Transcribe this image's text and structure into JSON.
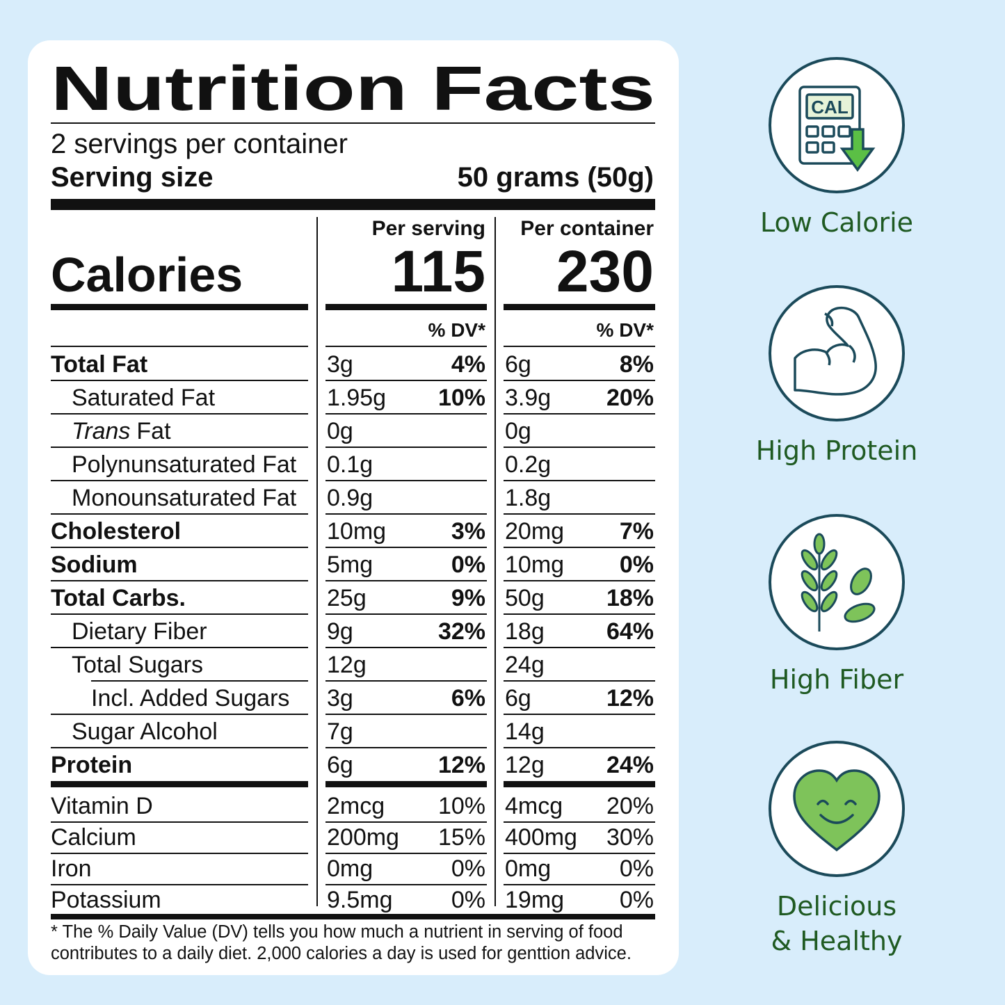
{
  "label": {
    "title": "Nutrition Facts",
    "servings": "2 servings per container",
    "serving_size_label": "Serving size",
    "serving_size_value": "50 grams (50g)",
    "per_serving": "Per serving",
    "per_container": "Per container",
    "calories_label": "Calories",
    "calories_serving": 115,
    "calories_container": 230,
    "dv_serving": "% DV*",
    "dv_container": "% DV*",
    "rows": [
      {
        "nutrient": "Total Fat",
        "serving_amount": "3g",
        "serving_dv": "4%",
        "container_amount": "6g",
        "container_dv": "8%"
      },
      {
        "nutrient": "Saturated Fat",
        "serving_amount": "1.95g",
        "serving_dv": "10%",
        "container_amount": "3.9g",
        "container_dv": "20%"
      },
      {
        "nutrient_prefix": "Trans",
        "nutrient": "Fat",
        "serving_amount": "0g",
        "container_amount": "0g"
      },
      {
        "nutrient": "Polynunsaturated Fat",
        "serving_amount": "0.1g",
        "container_amount": "0.2g"
      },
      {
        "nutrient": "Monounsaturated Fat",
        "serving_amount": "0.9g",
        "container_amount": "1.8g"
      },
      {
        "nutrient": "Cholesterol",
        "serving_amount": "10mg",
        "serving_dv": "3%",
        "container_amount": "20mg",
        "container_dv": "7%"
      },
      {
        "nutrient": "Sodium",
        "serving_amount": "5mg",
        "serving_dv": "0%",
        "container_amount": "10mg",
        "container_dv": "0%"
      },
      {
        "nutrient": "Total Carbs.",
        "serving_amount": "25g",
        "serving_dv": "9%",
        "container_amount": "50g",
        "container_dv": "18%"
      },
      {
        "nutrient": "Dietary Fiber",
        "serving_amount": "9g",
        "serving_dv": "32%",
        "container_amount": "18g",
        "container_dv": "64%"
      },
      {
        "nutrient": "Total Sugars",
        "serving_amount": "12g",
        "container_amount": "24g"
      },
      {
        "nutrient": "Incl. Added Sugars",
        "serving_amount": "3g",
        "serving_dv": "6%",
        "container_amount": "6g",
        "container_dv": "12%"
      },
      {
        "nutrient": "Sugar Alcohol",
        "serving_amount": "7g",
        "container_amount": "14g"
      },
      {
        "nutrient": "Protein",
        "serving_amount": "6g",
        "serving_dv": "12%",
        "container_amount": "12g",
        "container_dv": "24%"
      }
    ],
    "vitamins": [
      {
        "nutrient": "Vitamin D",
        "serving_amount": "2mcg",
        "serving_dv": "10%",
        "container_amount": "4mcg",
        "container_dv": "20%"
      },
      {
        "nutrient": "Calcium",
        "serving_amount": "200mg",
        "serving_dv": "15%",
        "container_amount": "400mg",
        "container_dv": "30%"
      },
      {
        "nutrient": "Iron",
        "serving_amount": "0mg",
        "serving_dv": "0%",
        "container_amount": "0mg",
        "container_dv": "0%"
      },
      {
        "nutrient": "Potassium",
        "serving_amount": "9.5mg",
        "serving_dv": "0%",
        "container_amount": "19mg",
        "container_dv": "0%"
      }
    ],
    "footnote": [
      "* The % Daily Value (DV) tells you how much a nutrient in serving of food",
      "contributes to a daily diet. 2,000 calories a day is used for genttion advice."
    ]
  },
  "badges": [
    {
      "icon_text": "CAL",
      "label": [
        "Low Calorie"
      ]
    },
    {
      "label": [
        "High Protein"
      ]
    },
    {
      "label": [
        "High Fiber"
      ]
    },
    {
      "label": [
        "Delicious",
        "& Healthy"
      ]
    }
  ]
}
